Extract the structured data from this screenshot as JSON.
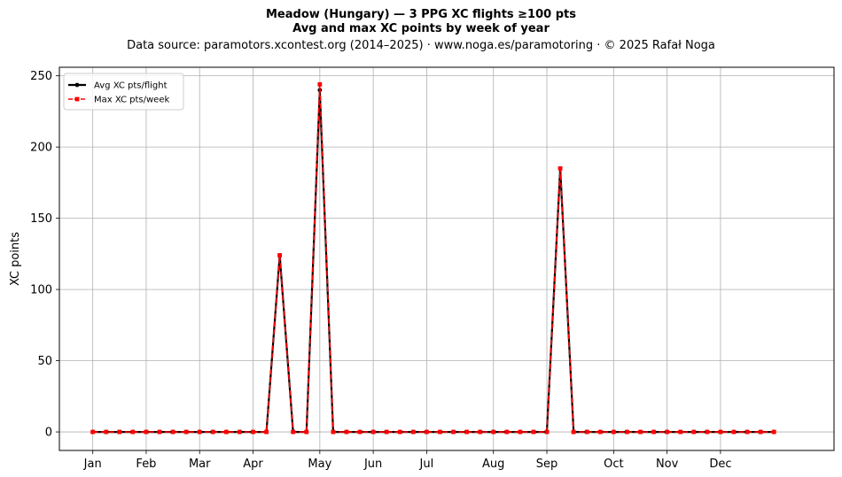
{
  "chart_data": {
    "type": "line",
    "title_line1": "Meadow (Hungary)  —  3 PPG XC flights ≥100 pts",
    "title_line2": "Avg and max XC points by week of year",
    "subtitle": "Data source: paramotors.xcontest.org (2014–2025)  ·  www.noga.es/paramotoring  ·  © 2025 Rafał Noga",
    "ylabel": "XC points",
    "xlabel": "",
    "x_range": [
      -2.5,
      55.5
    ],
    "ylim": [
      -13,
      256
    ],
    "yticks": [
      0,
      50,
      100,
      150,
      200,
      250
    ],
    "month_ticks": [
      {
        "label": "Jan",
        "week": 0
      },
      {
        "label": "Feb",
        "week": 4
      },
      {
        "label": "Mar",
        "week": 8
      },
      {
        "label": "Apr",
        "week": 12
      },
      {
        "label": "May",
        "week": 17
      },
      {
        "label": "Jun",
        "week": 21
      },
      {
        "label": "Jul",
        "week": 25
      },
      {
        "label": "Aug",
        "week": 30
      },
      {
        "label": "Sep",
        "week": 34
      },
      {
        "label": "Oct",
        "week": 39
      },
      {
        "label": "Nov",
        "week": 43
      },
      {
        "label": "Dec",
        "week": 47
      }
    ],
    "grid": true,
    "legend_position": "top-left",
    "weeks": [
      0,
      1,
      2,
      3,
      4,
      5,
      6,
      7,
      8,
      9,
      10,
      11,
      12,
      13,
      14,
      15,
      16,
      17,
      18,
      19,
      20,
      21,
      22,
      23,
      24,
      25,
      26,
      27,
      28,
      29,
      30,
      31,
      32,
      33,
      34,
      35,
      36,
      37,
      38,
      39,
      40,
      41,
      42,
      43,
      44,
      45,
      46,
      47,
      48,
      49,
      50,
      51
    ],
    "series": [
      {
        "name": "Avg XC pts/flight",
        "color": "#000000",
        "style": "solid",
        "marker": "circle",
        "values": [
          0,
          0,
          0,
          0,
          0,
          0,
          0,
          0,
          0,
          0,
          0,
          0,
          0,
          0,
          124,
          0,
          0,
          240,
          0,
          0,
          0,
          0,
          0,
          0,
          0,
          0,
          0,
          0,
          0,
          0,
          0,
          0,
          0,
          0,
          0,
          185,
          0,
          0,
          0,
          0,
          0,
          0,
          0,
          0,
          0,
          0,
          0,
          0,
          0,
          0,
          0,
          0
        ]
      },
      {
        "name": "Max XC pts/week",
        "color": "#ff0000",
        "style": "dashed",
        "marker": "square",
        "values": [
          0,
          0,
          0,
          0,
          0,
          0,
          0,
          0,
          0,
          0,
          0,
          0,
          0,
          0,
          124,
          0,
          0,
          244,
          0,
          0,
          0,
          0,
          0,
          0,
          0,
          0,
          0,
          0,
          0,
          0,
          0,
          0,
          0,
          0,
          0,
          185,
          0,
          0,
          0,
          0,
          0,
          0,
          0,
          0,
          0,
          0,
          0,
          0,
          0,
          0,
          0,
          0
        ]
      }
    ]
  }
}
